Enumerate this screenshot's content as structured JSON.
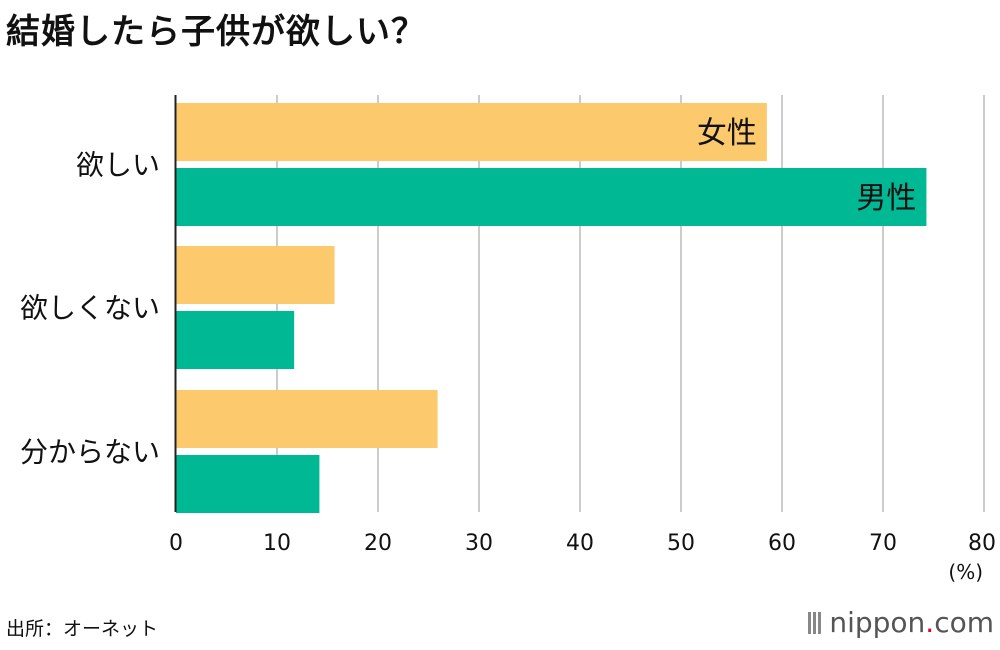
{
  "chart_data": {
    "type": "bar",
    "orientation": "horizontal",
    "title": "結婚したら子供が欲しい？",
    "categories": [
      "欲しい",
      "欲しくない",
      "分からない"
    ],
    "series": [
      {
        "name": "女性",
        "color": "#fcc96d",
        "values": [
          58.5,
          15.7,
          25.9
        ]
      },
      {
        "name": "男性",
        "color": "#00b894",
        "values": [
          74.3,
          11.7,
          14.2
        ]
      }
    ],
    "xlim": [
      0,
      80
    ],
    "xticks": [
      0,
      10,
      20,
      30,
      40,
      50,
      60,
      70,
      80
    ],
    "xunit": "(%)",
    "grid": true,
    "legend": "inline labels on first category bars"
  },
  "source": "出所：オーネット",
  "logo": {
    "name": "nippon",
    "dot": ".",
    "suffix": "com"
  }
}
